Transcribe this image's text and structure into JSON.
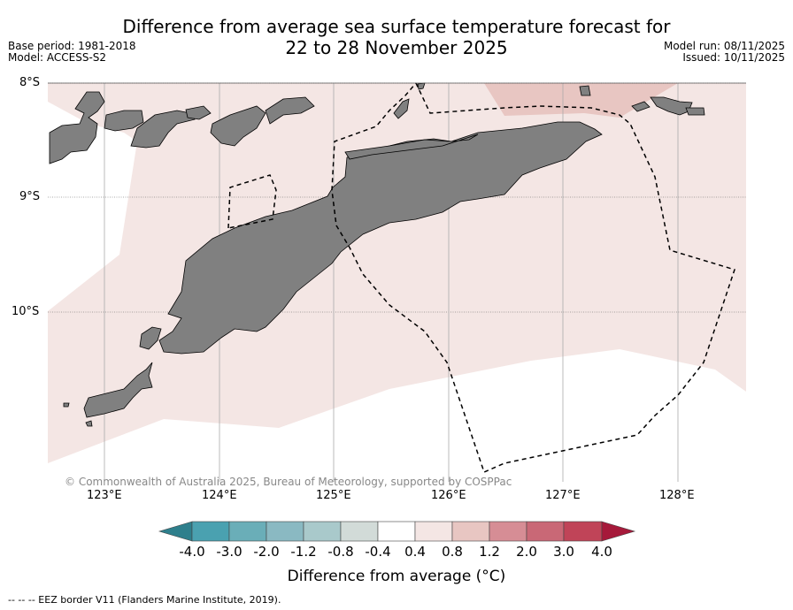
{
  "title": {
    "line1": "Difference from average sea surface temperature forecast for",
    "line2": "22 to 28 November 2025"
  },
  "meta": {
    "base_period": "Base period: 1981-2018",
    "model": "Model: ACCESS-S2",
    "model_run": "Model run: 08/11/2025",
    "issued": "Issued: 10/11/2025"
  },
  "map": {
    "lat_labels": [
      "8°S",
      "9°S",
      "10°S"
    ],
    "lon_labels": [
      "123°E",
      "124°E",
      "125°E",
      "126°E",
      "127°E",
      "128°E"
    ],
    "copyright": "© Commonwealth of Australia 2025, Bureau of Meteorology, supported by COSPPac",
    "colors": {
      "land": "#808080",
      "anomaly_04_08": "#f4e6e4",
      "anomaly_08_12": "#e8c6c2",
      "ocean": "#ffffff"
    }
  },
  "colorbar": {
    "ticks": [
      "-4.0",
      "-3.0",
      "-2.0",
      "-1.2",
      "-0.8",
      "-0.4",
      "0.4",
      "0.8",
      "1.2",
      "2.0",
      "3.0",
      "4.0"
    ],
    "colors": [
      "#2e7f8c",
      "#4aa1b0",
      "#6aaeb8",
      "#8ab9c2",
      "#a9c9cb",
      "#d2dbd8",
      "#ffffff",
      "#f4e6e4",
      "#e8c6c2",
      "#d68d95",
      "#c96876",
      "#c04458",
      "#a6193a"
    ],
    "label": "Difference from average (°C)"
  },
  "footer": {
    "eez_note": "--  --  -- EEZ border V11 (Flanders Marine Institute, 2019)."
  }
}
